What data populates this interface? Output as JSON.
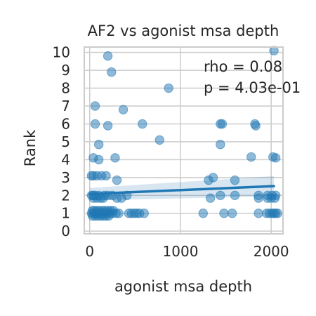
{
  "chart_data": {
    "type": "scatter",
    "title": "AF2 vs agonist msa depth",
    "xlabel": "agonist msa depth",
    "ylabel": "Rank",
    "xlim": [
      -60,
      2130
    ],
    "ylim": [
      -0.15,
      10.3
    ],
    "xticks": [
      0,
      1000,
      2000
    ],
    "yticks": [
      0,
      1,
      2,
      3,
      4,
      5,
      6,
      7,
      8,
      9,
      10
    ],
    "grid": true,
    "legend": "none",
    "colors": {
      "points": "#1f77b4",
      "line": "#1f77b4",
      "band": "#1f77b4",
      "grid": "#cccccc",
      "frame": "#cccccc"
    },
    "annotations": [
      "rho = 0.08",
      "p = 4.03e-01"
    ],
    "regression": {
      "x": [
        0,
        2030
      ],
      "y": [
        2.08,
        2.52
      ],
      "ci_lower": [
        1.72,
        1.95
      ],
      "ci_upper": [
        2.42,
        3.08
      ]
    },
    "x": [
      20,
      40,
      70,
      100,
      130,
      160,
      190,
      220,
      250,
      30,
      60,
      90,
      120,
      150,
      180,
      210,
      30,
      50,
      80,
      110,
      140,
      170,
      200,
      230,
      260,
      290,
      320,
      430,
      460,
      490,
      520,
      550,
      600,
      1250,
      1480,
      1570,
      1860,
      1950,
      1980,
      2010,
      2030,
      2050,
      2070,
      40,
      80,
      120,
      150,
      300,
      350,
      1330,
      1860,
      1960,
      2000,
      2040,
      20,
      40,
      60,
      100,
      160,
      200,
      250,
      410,
      1440,
      1600,
      1860,
      1960,
      2010,
      2050,
      20,
      40,
      80,
      130,
      180,
      300,
      1310,
      1360,
      1600,
      40,
      100,
      280,
      1780,
      2020,
      2050,
      100,
      770,
      1440,
      60,
      200,
      580,
      1440,
      1460,
      1820,
      1830,
      60,
      370,
      870,
      240,
      200,
      2030
    ],
    "y": [
      1,
      1,
      1,
      1,
      1,
      1,
      1,
      1,
      1,
      0.85,
      0.85,
      0.85,
      0.85,
      0.85,
      0.85,
      0.85,
      1.15,
      1.15,
      1.15,
      1.15,
      1.15,
      1.15,
      1.15,
      1.15,
      1.15,
      1,
      1,
      1,
      1,
      1,
      1,
      1,
      1,
      1,
      1,
      1,
      1,
      1,
      1,
      1,
      1,
      1,
      1,
      1.85,
      1.85,
      1.85,
      1.85,
      1.85,
      1.85,
      1.85,
      1.85,
      1.85,
      1.85,
      1.85,
      2,
      2,
      2,
      2,
      2,
      2,
      2,
      2,
      2,
      2,
      2,
      2,
      2,
      2,
      3.1,
      3.1,
      3.1,
      3.1,
      3.1,
      2.85,
      2.85,
      3,
      2.85,
      4.1,
      4,
      4.1,
      4.15,
      4.15,
      4.1,
      4.85,
      5.1,
      4.85,
      6,
      5.9,
      6,
      6,
      6,
      6,
      5.9,
      7,
      6.8,
      8,
      8.9,
      9.8,
      10.1
    ]
  }
}
